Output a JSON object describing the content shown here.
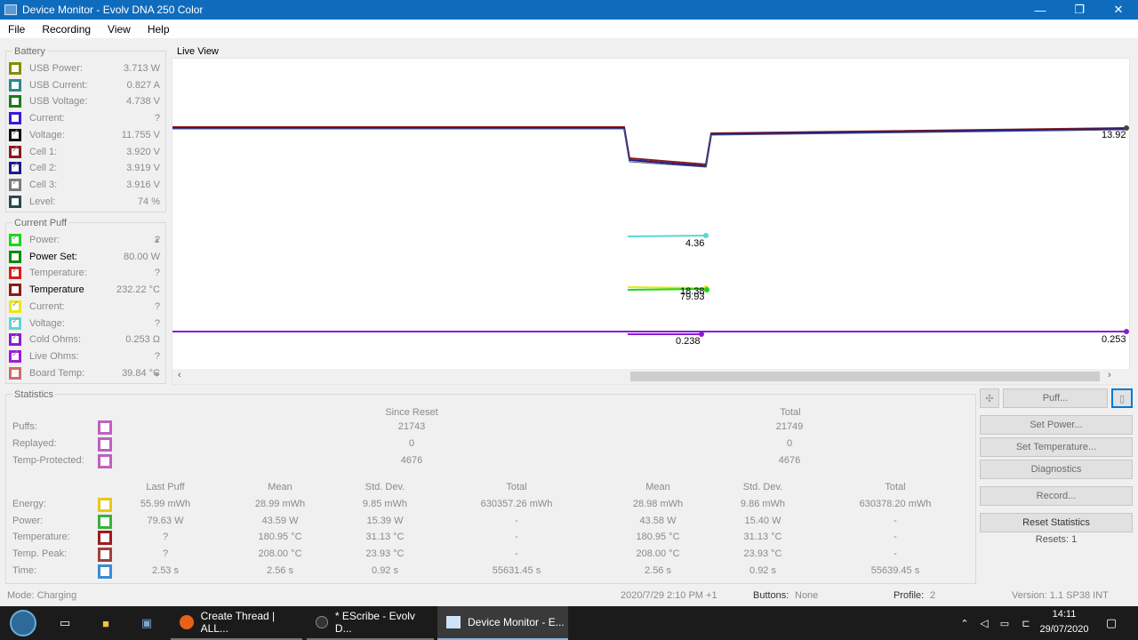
{
  "window": {
    "title": "Device Monitor - Evolv DNA 250 Color",
    "controls": [
      "—",
      "❐",
      "✕"
    ]
  },
  "menu": [
    "File",
    "Recording",
    "View",
    "Help"
  ],
  "battery": {
    "title": "Battery",
    "items": [
      {
        "label": "USB Power:",
        "value": "3.713 W",
        "color": "#8b8b00",
        "checked": false,
        "active": false
      },
      {
        "label": "USB Current:",
        "value": "0.827 A",
        "color": "#2a8a8a",
        "checked": false,
        "active": false
      },
      {
        "label": "USB Voltage:",
        "value": "4.738 V",
        "color": "#1b7a1b",
        "checked": false,
        "active": false
      },
      {
        "label": "Current:",
        "value": "?",
        "color": "#3b1bd6",
        "checked": false,
        "active": false
      },
      {
        "label": "Voltage:",
        "value": "11.755 V",
        "color": "#111111",
        "checked": true,
        "active": false
      },
      {
        "label": "Cell 1:",
        "value": "3.920 V",
        "color": "#8b1b1b",
        "checked": true,
        "active": false
      },
      {
        "label": "Cell 2:",
        "value": "3.919 V",
        "color": "#1b1b8b",
        "checked": true,
        "active": false
      },
      {
        "label": "Cell 3:",
        "value": "3.916 V",
        "color": "#7a7a7a",
        "checked": true,
        "active": false
      },
      {
        "label": "Level:",
        "value": "74 %",
        "color": "#2a4a4a",
        "checked": false,
        "active": false
      }
    ]
  },
  "current_puff": {
    "title": "Current Puff",
    "items": [
      {
        "label": "Power:",
        "value": "?",
        "color": "#1bd61b",
        "checked": true,
        "active": false
      },
      {
        "label": "Power Set:",
        "value": "80.00 W",
        "color": "#0b8b0b",
        "checked": false,
        "active": true
      },
      {
        "label": "Temperature:",
        "value": "?",
        "color": "#e01b1b",
        "checked": true,
        "active": false
      },
      {
        "label": "Temperature",
        "value": "232.22 °C",
        "color": "#8b1b1b",
        "checked": false,
        "active": true
      },
      {
        "label": "Current:",
        "value": "?",
        "color": "#e8e81b",
        "checked": true,
        "active": false
      },
      {
        "label": "Voltage:",
        "value": "?",
        "color": "#5bd6d6",
        "checked": true,
        "active": false
      },
      {
        "label": "Cold Ohms:",
        "value": "0.253 Ω",
        "color": "#8b1bd6",
        "checked": true,
        "active": false
      },
      {
        "label": "Live Ohms:",
        "value": "?",
        "color": "#a01bd6",
        "checked": true,
        "active": false
      },
      {
        "label": "Board Temp:",
        "value": "39.84 °C",
        "color": "#d66a6a",
        "checked": false,
        "active": false
      }
    ]
  },
  "live_view": {
    "title": "Live View",
    "labels": [
      "13.92",
      "4.36",
      "18.38",
      "79.93",
      "0.238",
      "0.253"
    ]
  },
  "statistics": {
    "title": "Statistics",
    "headers_top": [
      "Since Reset",
      "Total"
    ],
    "rows_top": [
      {
        "label": "Puffs:",
        "since": "21743",
        "total": "21749",
        "color": "#c060c0"
      },
      {
        "label": "Replayed:",
        "since": "0",
        "total": "0",
        "color": "#c060c0"
      },
      {
        "label": "Temp-Protected:",
        "since": "4676",
        "total": "4676",
        "color": "#c060c0"
      }
    ],
    "headers_bottom": [
      "Last Puff",
      "Mean",
      "Std. Dev.",
      "Total",
      "Mean",
      "Std. Dev.",
      "Total"
    ],
    "rows_bottom": [
      {
        "label": "Energy:",
        "color": "#e8c81b",
        "cells": [
          "55.99 mWh",
          "28.99 mWh",
          "9.85 mWh",
          "630357.26 mWh",
          "28.98 mWh",
          "9.86 mWh",
          "630378.20 mWh"
        ]
      },
      {
        "label": "Power:",
        "color": "#3bb03b",
        "cells": [
          "79.63 W",
          "43.59 W",
          "15.39 W",
          "-",
          "43.58 W",
          "15.40 W",
          "-"
        ]
      },
      {
        "label": "Temperature:",
        "color": "#a01b1b",
        "cells": [
          "?",
          "180.95 °C",
          "31.13 °C",
          "-",
          "180.95 °C",
          "31.13 °C",
          "-"
        ]
      },
      {
        "label": "Temp. Peak:",
        "color": "#a04040",
        "cells": [
          "?",
          "208.00 °C",
          "23.93 °C",
          "-",
          "208.00 °C",
          "23.93 °C",
          "-"
        ]
      },
      {
        "label": "Time:",
        "color": "#3b8bd6",
        "cells": [
          "2.53 s",
          "2.56 s",
          "0.92 s",
          "55631.45 s",
          "2.56 s",
          "0.92 s",
          "55639.45 s"
        ]
      }
    ]
  },
  "buttons": {
    "puff": "Puff...",
    "set_power": "Set Power...",
    "set_temperature": "Set Temperature...",
    "diagnostics": "Diagnostics",
    "record": "Record...",
    "reset_statistics": "Reset Statistics",
    "resets": "Resets: 1"
  },
  "status": {
    "mode": "Mode: Charging",
    "datetime": "2020/7/29 2:10 PM +1",
    "buttons_label": "Buttons:",
    "buttons_value": "None",
    "profile_label": "Profile:",
    "profile_value": "2",
    "version": "Version: 1.1 SP38 INT"
  },
  "taskbar": {
    "tasks": [
      "Create Thread | ALL...",
      "* EScribe - Evolv D...",
      "Device Monitor - E..."
    ],
    "time": "14:11",
    "date": "29/07/2020"
  }
}
